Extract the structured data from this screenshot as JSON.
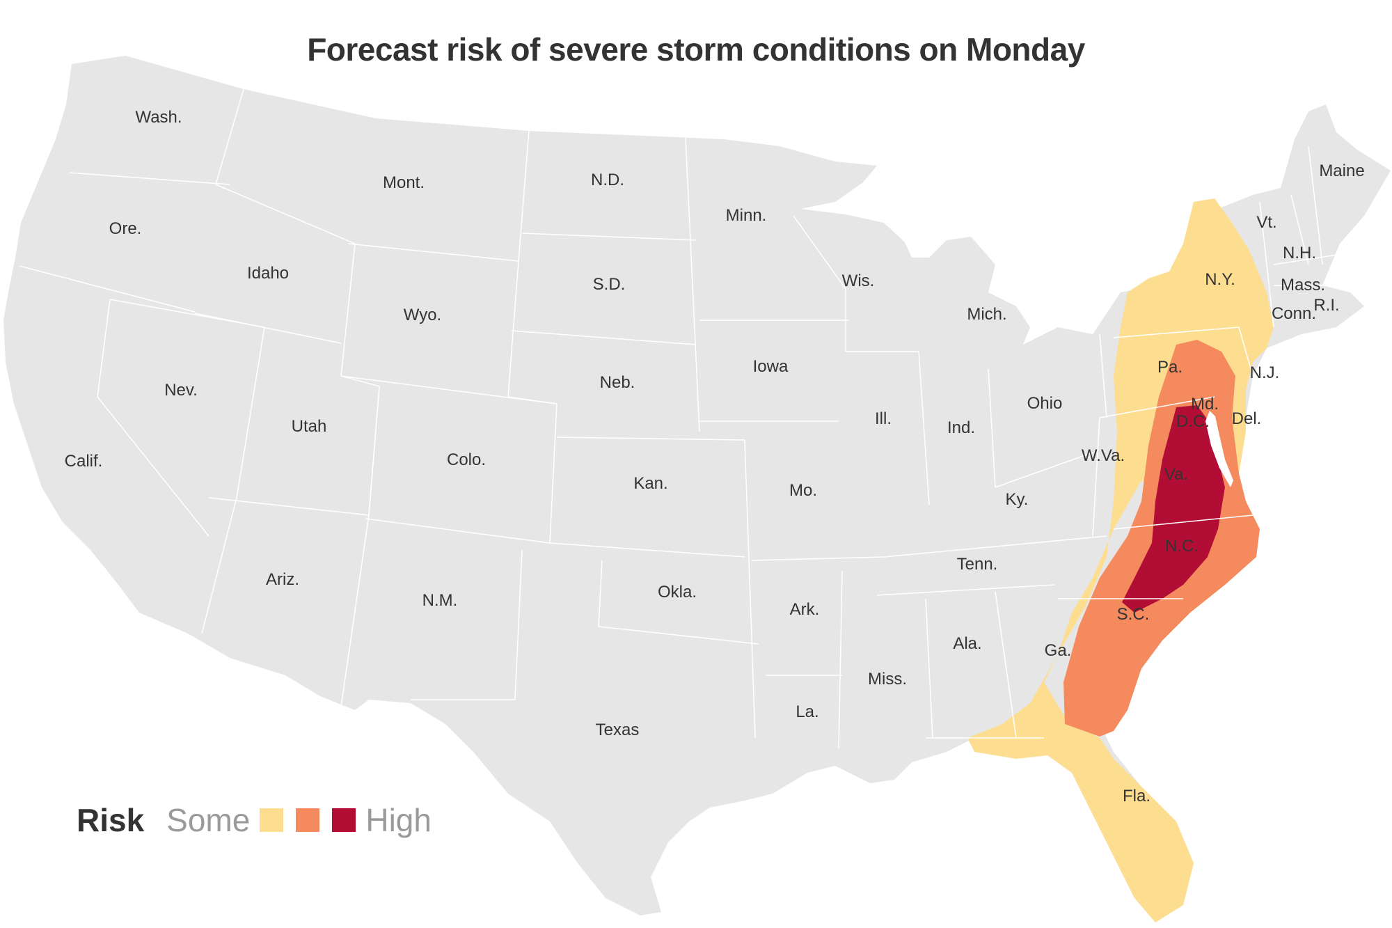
{
  "title": "Forecast risk of severe storm conditions on Monday",
  "legend": {
    "title": "Risk",
    "low_label": "Some",
    "high_label": "High",
    "levels": [
      {
        "level": 1,
        "color": "#fddd8f"
      },
      {
        "level": 2,
        "color": "#f58a5e"
      },
      {
        "level": 3,
        "color": "#b20d34"
      }
    ]
  },
  "colors": {
    "land": "#e6e6e6",
    "border": "#ffffff",
    "text": "#333333"
  },
  "states": [
    "Wash.",
    "Ore.",
    "Calif.",
    "Idaho",
    "Nev.",
    "Mont.",
    "Wyo.",
    "Utah",
    "Ariz.",
    "Colo.",
    "N.M.",
    "N.D.",
    "S.D.",
    "Neb.",
    "Kan.",
    "Okla.",
    "Texas",
    "Minn.",
    "Iowa",
    "Mo.",
    "Ark.",
    "La.",
    "Wis.",
    "Ill.",
    "Mich.",
    "Ind.",
    "Ohio",
    "Ky.",
    "Tenn.",
    "Miss.",
    "Ala.",
    "Ga.",
    "Fla.",
    "S.C.",
    "N.C.",
    "Va.",
    "W.Va.",
    "Pa.",
    "N.Y.",
    "Md.",
    "D.C.",
    "Del.",
    "N.J.",
    "Conn.",
    "R.I.",
    "Mass.",
    "Vt.",
    "N.H.",
    "Maine"
  ]
}
